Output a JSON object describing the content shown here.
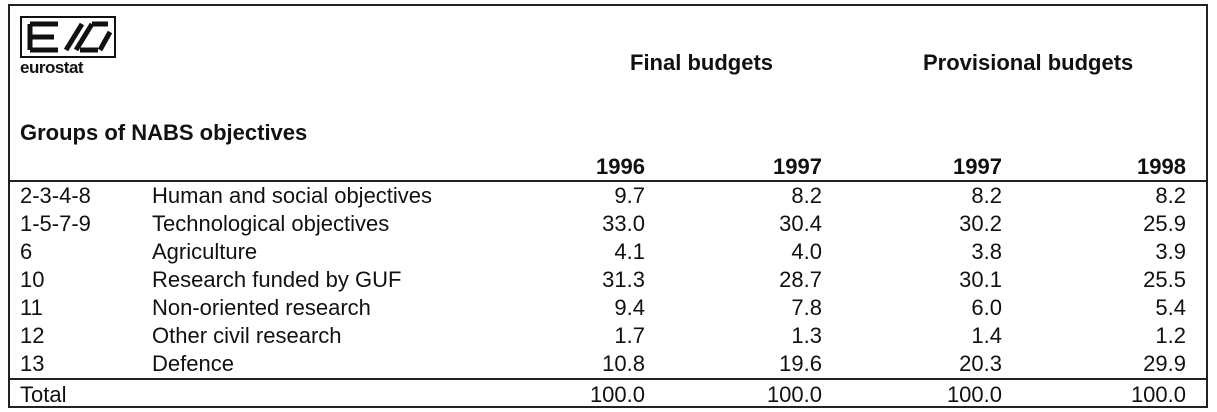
{
  "header": {
    "logo": "eurostat",
    "title": "Groups of NABS objectives",
    "groups": [
      "Final budgets",
      "Provisional budgets"
    ],
    "years": [
      "1996",
      "1997",
      "1997",
      "1998"
    ]
  },
  "table": {
    "rows": [
      [
        "2-3-4-8",
        "Human and social objectives",
        "9.7",
        "8.2",
        "8.2",
        "8.2"
      ],
      [
        "1-5-7-9",
        "Technological objectives",
        "33.0",
        "30.4",
        "30.2",
        "25.9"
      ],
      [
        "6",
        "Agriculture",
        "4.1",
        "4.0",
        "3.8",
        "3.9"
      ],
      [
        "10",
        "Research funded by GUF",
        "31.3",
        "28.7",
        "30.1",
        "25.5"
      ],
      [
        "11",
        "Non-oriented research",
        "9.4",
        "7.8",
        "6.0",
        "5.4"
      ],
      [
        "12",
        "Other civil research",
        "1.7",
        "1.3",
        "1.4",
        "1.2"
      ],
      [
        "13",
        "Defence",
        "10.8",
        "19.6",
        "20.3",
        "29.9"
      ]
    ],
    "total": [
      "Total",
      "100.0",
      "100.0",
      "100.0",
      "100.0"
    ]
  }
}
